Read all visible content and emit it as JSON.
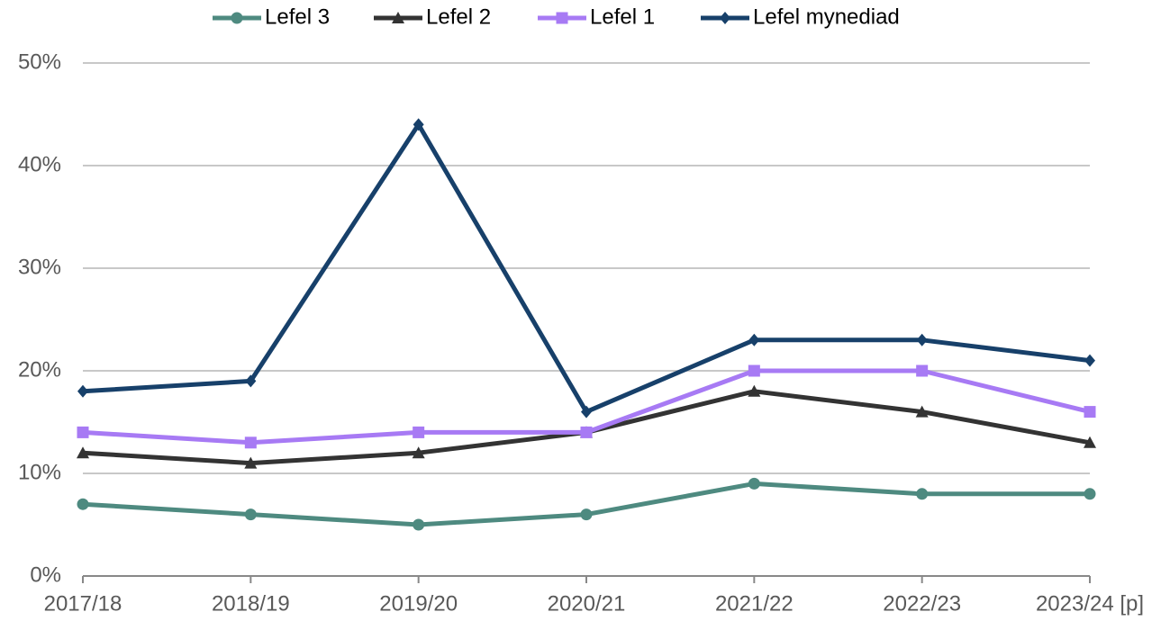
{
  "chart_data": {
    "type": "line",
    "categories": [
      "2017/18",
      "2018/19",
      "2019/20",
      "2020/21",
      "2021/22",
      "2022/23",
      "2023/24 [p]"
    ],
    "series": [
      {
        "name": "Lefel 3",
        "color": "#4e8a80",
        "marker": "circle",
        "values": [
          7,
          6,
          5,
          6,
          9,
          8,
          8
        ]
      },
      {
        "name": "Lefel 2",
        "color": "#333333",
        "marker": "triangle",
        "values": [
          12,
          11,
          12,
          14,
          18,
          16,
          13
        ]
      },
      {
        "name": "Lefel 1",
        "color": "#a77af4",
        "marker": "square",
        "values": [
          14,
          13,
          14,
          14,
          20,
          20,
          16
        ]
      },
      {
        "name": "Lefel mynediad",
        "color": "#17406a",
        "marker": "diamond",
        "values": [
          18,
          19,
          44,
          16,
          23,
          23,
          21
        ]
      }
    ],
    "ylim": [
      0,
      50
    ],
    "yticks": [
      {
        "value": 0,
        "label": "0%"
      },
      {
        "value": 10,
        "label": "10%"
      },
      {
        "value": 20,
        "label": "20%"
      },
      {
        "value": 30,
        "label": "30%"
      },
      {
        "value": 40,
        "label": "40%"
      },
      {
        "value": 50,
        "label": "50%"
      }
    ],
    "grid": true,
    "legend": "top"
  }
}
